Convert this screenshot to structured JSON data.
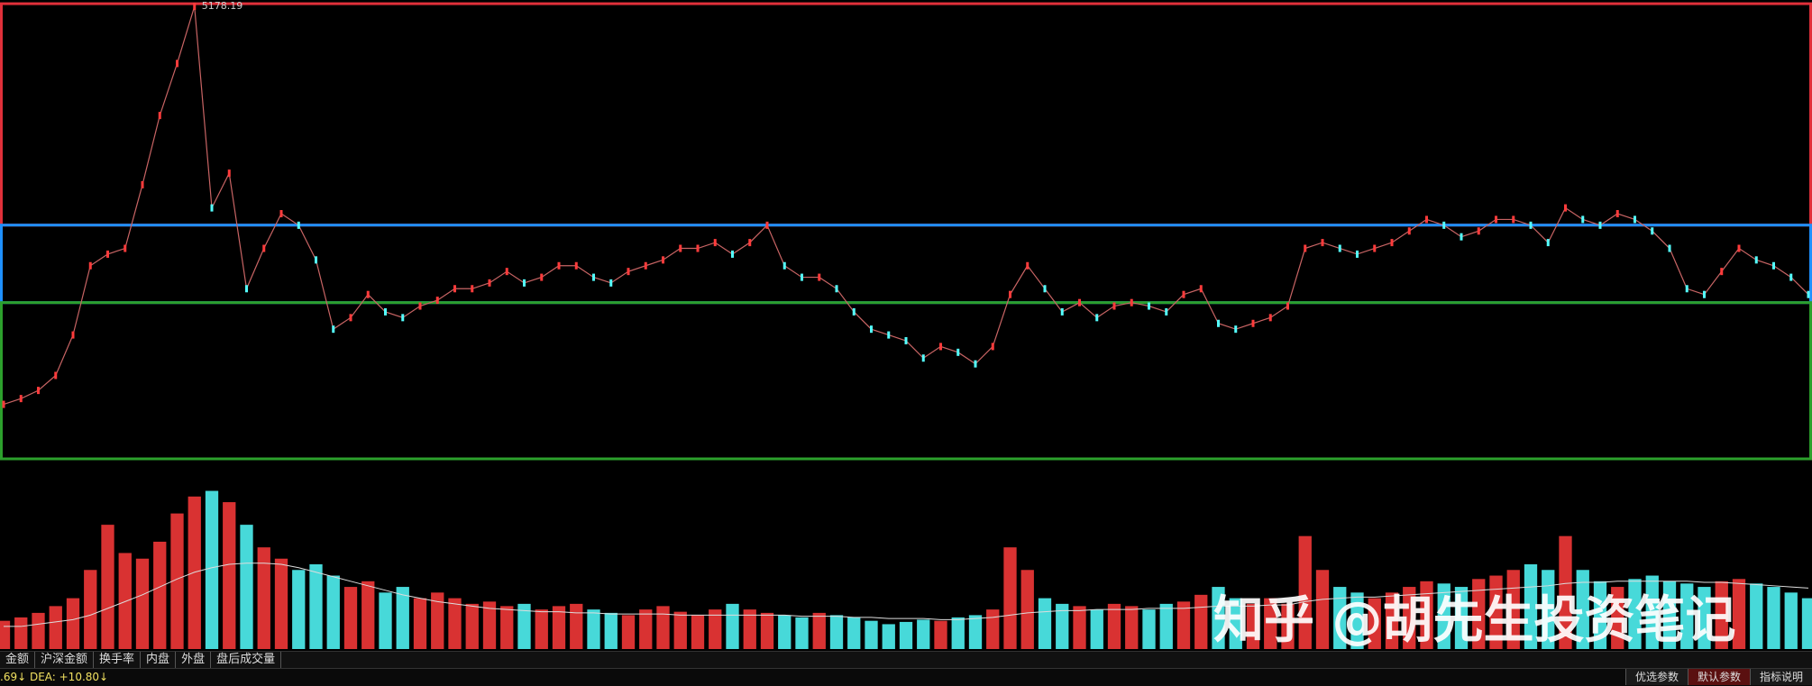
{
  "chart_data": [
    {
      "type": "line",
      "peak": 5178.19,
      "up_color": "#ff3b3b",
      "down_color": "#54ffff",
      "ylim": [
        1500,
        5230
      ],
      "zones": [
        {
          "from": 3400,
          "to": 5200,
          "color": "#e0303a"
        },
        {
          "from": 2770,
          "to": 3400,
          "color": "#1e90ff"
        },
        {
          "from": 1500,
          "to": 2770,
          "color": "#2ca02c"
        }
      ],
      "values": [
        1943,
        1990,
        2056,
        2178,
        2507,
        3070,
        3164,
        3211,
        3728,
        4291,
        4714,
        5178,
        3540,
        3822,
        2883,
        3211,
        3493,
        3399,
        3117,
        2554,
        2648,
        2836,
        2695,
        2648,
        2742,
        2789,
        2883,
        2883,
        2930,
        3023,
        2930,
        2976,
        3070,
        3070,
        2976,
        2930,
        3023,
        3070,
        3117,
        3211,
        3211,
        3258,
        3164,
        3258,
        3399,
        3070,
        2976,
        2976,
        2883,
        2695,
        2554,
        2507,
        2460,
        2319,
        2413,
        2366,
        2272,
        2413,
        2836,
        3070,
        2883,
        2695,
        2770,
        2648,
        2742,
        2770,
        2742,
        2695,
        2836,
        2883,
        2601,
        2554,
        2601,
        2648,
        2742,
        3211,
        3258,
        3211,
        3164,
        3211,
        3258,
        3352,
        3446,
        3399,
        3305,
        3352,
        3446,
        3446,
        3399,
        3258,
        3540,
        3446,
        3399,
        3493,
        3446,
        3352,
        3211,
        2883,
        2836,
        3023,
        3211,
        3117,
        3070,
        2976,
        2836
      ]
    },
    {
      "type": "bar",
      "ylim": [
        0,
        150
      ],
      "line_color": "#dddddd",
      "values": [
        25,
        28,
        32,
        38,
        45,
        70,
        110,
        85,
        80,
        95,
        120,
        135,
        140,
        130,
        110,
        90,
        80,
        70,
        75,
        65,
        55,
        60,
        50,
        55,
        45,
        50,
        45,
        40,
        42,
        38,
        40,
        35,
        38,
        40,
        35,
        32,
        30,
        35,
        38,
        33,
        30,
        35,
        40,
        35,
        32,
        30,
        28,
        32,
        30,
        28,
        25,
        22,
        24,
        26,
        25,
        28,
        30,
        35,
        90,
        70,
        45,
        40,
        38,
        35,
        40,
        38,
        35,
        40,
        42,
        48,
        55,
        45,
        40,
        45,
        40,
        100,
        70,
        55,
        50,
        45,
        50,
        55,
        60,
        58,
        55,
        62,
        65,
        70,
        75,
        70,
        100,
        70,
        60,
        55,
        62,
        65,
        60,
        58,
        55,
        60,
        62,
        58,
        55,
        50,
        45
      ],
      "line_values": [
        20,
        20,
        22,
        24,
        26,
        30,
        36,
        42,
        48,
        55,
        62,
        68,
        72,
        75,
        76,
        76,
        75,
        72,
        68,
        64,
        60,
        56,
        52,
        48,
        45,
        42,
        40,
        38,
        36,
        35,
        34,
        33,
        33,
        32,
        32,
        31,
        31,
        31,
        31,
        30,
        30,
        30,
        30,
        30,
        30,
        30,
        29,
        29,
        29,
        28,
        28,
        27,
        27,
        27,
        26,
        26,
        27,
        28,
        30,
        32,
        33,
        34,
        34,
        35,
        35,
        35,
        36,
        36,
        36,
        37,
        38,
        38,
        38,
        39,
        39,
        42,
        44,
        45,
        46,
        46,
        47,
        48,
        49,
        50,
        51,
        52,
        53,
        54,
        55,
        56,
        58,
        59,
        59,
        60,
        60,
        60,
        60,
        60,
        59,
        59,
        58,
        57,
        56,
        55,
        54
      ]
    }
  ],
  "watermark": "知乎 @胡先生投资笔记",
  "tabs": [
    "金额",
    "沪深金额",
    "换手率",
    "内盘",
    "外盘",
    "盘后成交量"
  ],
  "status": ".69↓ DEA: +10.80↓",
  "buttons": [
    "优选参数",
    "默认参数",
    "指标说明"
  ]
}
